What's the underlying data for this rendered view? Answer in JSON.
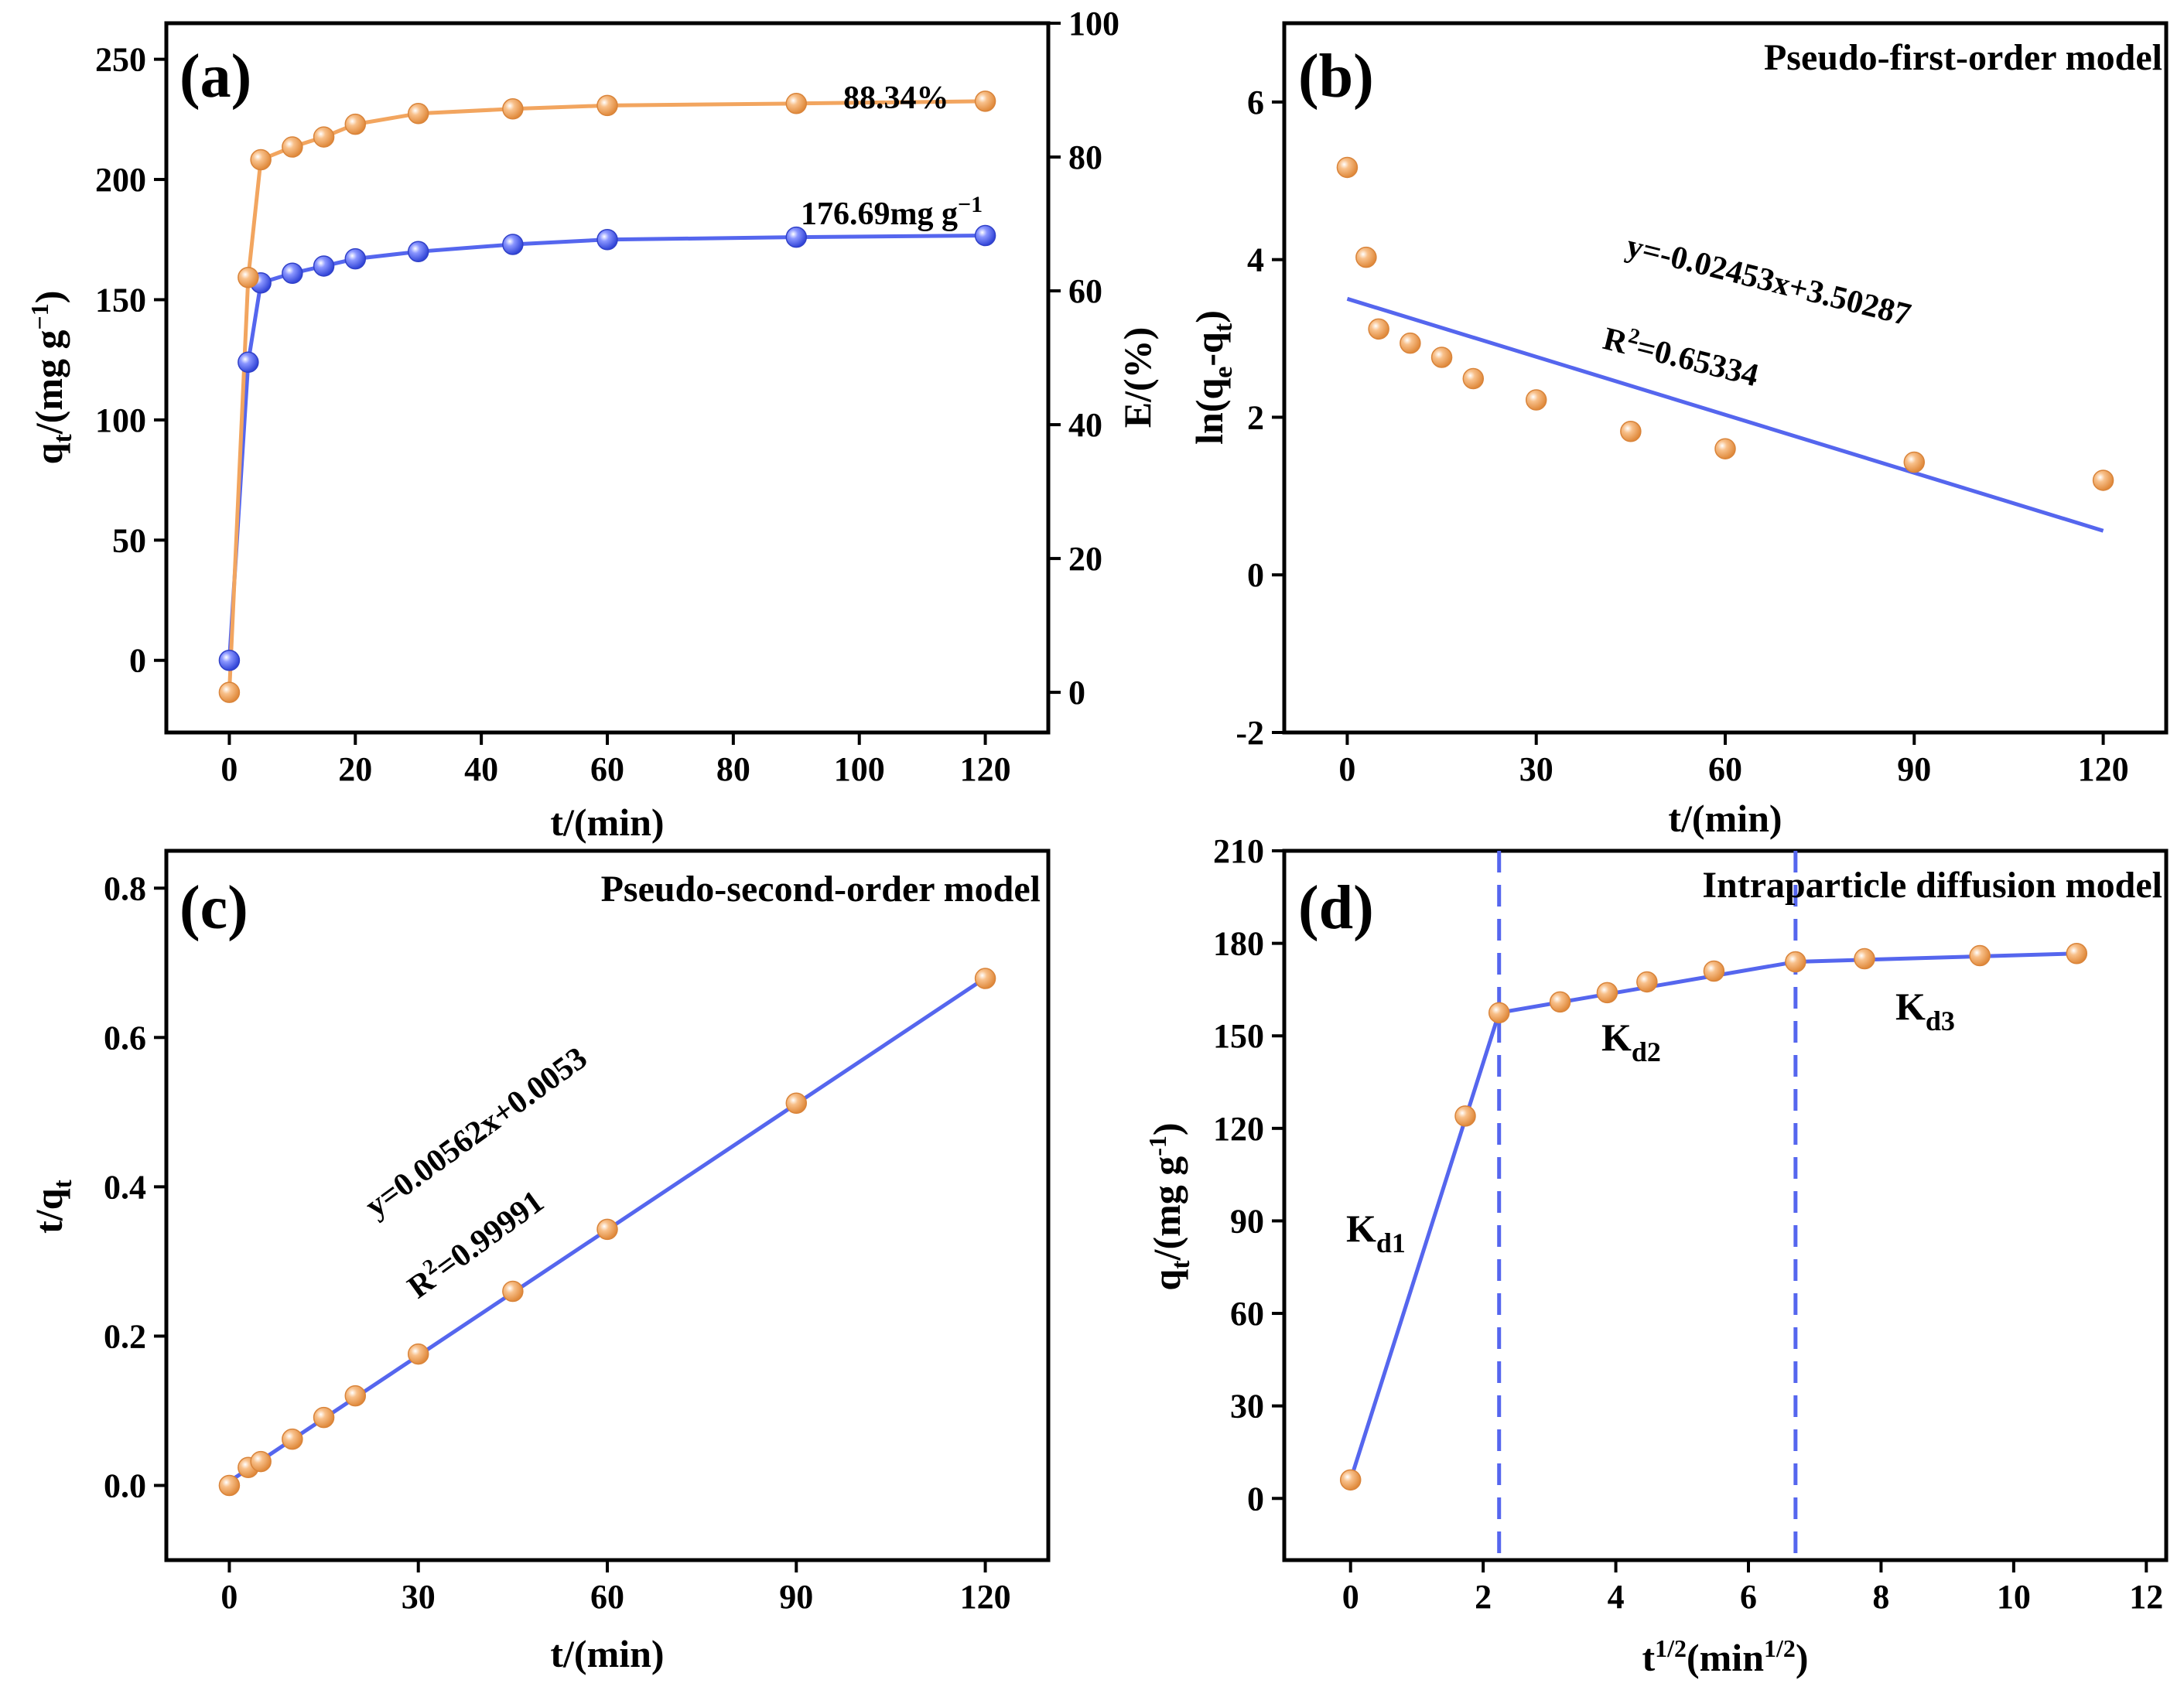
{
  "colors": {
    "orange": "#f2a55f",
    "blue": "#5566ee",
    "fit": "#5566ee",
    "axis": "#000000"
  },
  "chart_data": [
    {
      "panel": "(a)",
      "type": "line",
      "x": [
        0,
        3,
        5,
        10,
        15,
        20,
        30,
        45,
        60,
        90,
        120
      ],
      "xlabel": "t/(min)",
      "xlim": [
        -10,
        130
      ],
      "xticks": [
        0,
        20,
        40,
        60,
        80,
        100,
        120
      ],
      "ylabel": {
        "main": "q",
        "sub": "t",
        "rest": "/(mg g",
        "sup": "−1",
        "end": ")"
      },
      "ylim": [
        -30,
        265
      ],
      "yticks": [
        0,
        50,
        100,
        150,
        200,
        250
      ],
      "y2label": "E/(%)",
      "y2lim": [
        -6,
        100
      ],
      "y2ticks": [
        0,
        20,
        40,
        60,
        80,
        100
      ],
      "series": [
        {
          "name": "qt",
          "axis": "left",
          "color": "#5566ee",
          "values": [
            0,
            124,
            157,
            161,
            164,
            167,
            170,
            173,
            175,
            176,
            176.69
          ]
        },
        {
          "name": "E",
          "axis": "right",
          "color": "#f2a55f",
          "values": [
            0,
            62,
            79.6,
            81.5,
            83,
            84.9,
            86.5,
            87.2,
            87.7,
            88,
            88.34
          ]
        }
      ],
      "annotations": [
        {
          "text": "88.34%"
        },
        {
          "text": "176.69mg g",
          "sup": "−1"
        }
      ]
    },
    {
      "panel": "(b)",
      "type": "scatter",
      "title": "Pseudo-first-order model",
      "x": [
        0,
        3,
        5,
        10,
        15,
        20,
        30,
        45,
        60,
        90,
        120
      ],
      "values": [
        5.17,
        4.03,
        3.12,
        2.94,
        2.76,
        2.49,
        2.22,
        1.82,
        1.6,
        1.43,
        1.2
      ],
      "fit": {
        "slope": -0.02453,
        "intercept": 3.50287,
        "x": [
          0,
          120
        ]
      },
      "equation": "y=-0.02453x+3.50287",
      "r2": {
        "label": "R",
        "sup": "2",
        "value": "=0.65334"
      },
      "xlabel": "t/(min)",
      "ylabel": "ln(q_e-q_t)",
      "ylabel_parts": {
        "pre": "ln(q",
        "s1": "e",
        "mid": "-q",
        "s2": "t",
        "end": ")"
      },
      "xlim": [
        -10,
        130
      ],
      "xticks": [
        0,
        30,
        60,
        90,
        120
      ],
      "ylim": [
        -2,
        7
      ],
      "yticks": [
        -2,
        0,
        2,
        4,
        6
      ]
    },
    {
      "panel": "(c)",
      "type": "scatter",
      "title": "Pseudo-second-order model",
      "x": [
        0,
        3,
        5,
        10,
        15,
        20,
        30,
        45,
        60,
        90,
        120
      ],
      "values": [
        0.0,
        0.024,
        0.032,
        0.062,
        0.091,
        0.12,
        0.176,
        0.26,
        0.343,
        0.512,
        0.679
      ],
      "fit": {
        "slope": 0.00562,
        "intercept": 0.0053,
        "x": [
          0,
          120
        ]
      },
      "equation": "y=0.00562x+0.0053",
      "r2": {
        "label": "R",
        "sup": "2",
        "value": "=0.99991"
      },
      "xlabel": "t/(min)",
      "ylabel_parts": {
        "pre": "t/q",
        "s1": "t"
      },
      "xlim": [
        -10,
        130
      ],
      "xticks": [
        0,
        30,
        60,
        90,
        120
      ],
      "ylim": [
        -0.1,
        0.85
      ],
      "yticks": [
        "0.0",
        "0.2",
        "0.4",
        "0.6",
        "0.8"
      ]
    },
    {
      "panel": "(d)",
      "type": "scatter",
      "title": "Intraparticle diffusion model",
      "x": [
        0,
        1.73,
        2.24,
        3.16,
        3.87,
        4.47,
        5.48,
        6.71,
        7.75,
        9.49,
        10.95
      ],
      "values": [
        6,
        124,
        157.5,
        161,
        164,
        167.5,
        171,
        174,
        175,
        176,
        176.7
      ],
      "segments": [
        {
          "x": [
            0,
            2.24
          ],
          "y": [
            6,
            157.5
          ]
        },
        {
          "x": [
            2.24,
            6.71
          ],
          "y": [
            157.5,
            174
          ]
        },
        {
          "x": [
            6.71,
            10.95
          ],
          "y": [
            174,
            176.7
          ]
        }
      ],
      "dividers": [
        2.24,
        6.71
      ],
      "stage_labels": [
        {
          "main": "K",
          "sub": "d1"
        },
        {
          "main": "K",
          "sub": "d2"
        },
        {
          "main": "K",
          "sub": "d3"
        }
      ],
      "xlabel_parts": {
        "pre": "t",
        "sup1": "1/2",
        "mid": "(min",
        "sup2": "1/2",
        "end": ")"
      },
      "ylabel_parts": {
        "pre": "q",
        "sub": "t",
        "rest": "/(mg g",
        "sup": "-1",
        "end": ")"
      },
      "xlim": [
        -1,
        12.3
      ],
      "xticks": [
        0,
        2,
        4,
        6,
        8,
        10,
        12
      ],
      "ylim": [
        -20,
        210
      ],
      "yticks": [
        0,
        30,
        60,
        90,
        120,
        150,
        180,
        210
      ]
    }
  ]
}
